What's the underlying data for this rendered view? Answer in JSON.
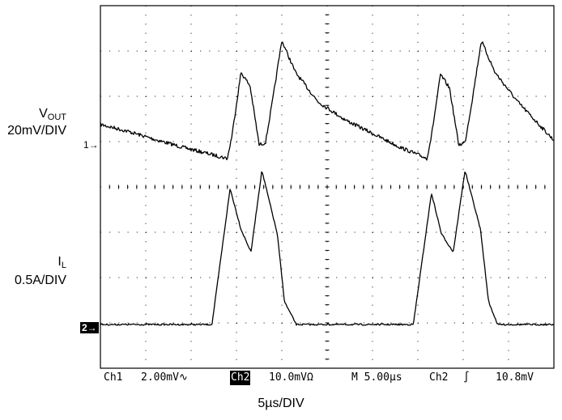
{
  "chart_data": {
    "type": "line",
    "title": "",
    "xlabel": "5µs/DIV",
    "x_unit": "µs",
    "x_per_div": 5,
    "xlim": [
      0,
      50
    ],
    "divisions": {
      "x": 10,
      "y": 8
    },
    "grid": true,
    "series": [
      {
        "name": "VOUT",
        "label_main": "V",
        "label_sub": "OUT",
        "scale": "20mV/DIV",
        "marker": "1→",
        "units": "divisions above channel 1 marker",
        "x": [
          0,
          3,
          6,
          9,
          12,
          14,
          14.5,
          15.5,
          16.5,
          17.5,
          18.2,
          19,
          20,
          21.5,
          24,
          27,
          30,
          33,
          36,
          36.5,
          37.5,
          38.5,
          39.5,
          40.2,
          41,
          42,
          43.5,
          46,
          50
        ],
        "y": [
          0.45,
          0.3,
          0.12,
          -0.05,
          -0.2,
          -0.3,
          0.2,
          1.6,
          1.3,
          0.0,
          0.05,
          1.0,
          2.3,
          1.6,
          0.95,
          0.55,
          0.25,
          -0.05,
          -0.3,
          0.2,
          1.55,
          1.25,
          0.0,
          0.05,
          1.0,
          2.3,
          1.6,
          0.95,
          0.1
        ]
      },
      {
        "name": "IL",
        "label_main": "I",
        "label_sub": "L",
        "scale": "0.5A/DIV",
        "marker": "2→",
        "units": "divisions above channel 2 marker",
        "x": [
          0,
          12.3,
          14.3,
          15.5,
          16.6,
          17.8,
          19.5,
          20.3,
          21.6,
          25,
          34.5,
          36.5,
          37.6,
          38.9,
          40.2,
          41.9,
          42.8,
          43.8,
          50
        ],
        "y": [
          0,
          0,
          3.0,
          2.1,
          1.6,
          3.4,
          2.0,
          0.5,
          0,
          0,
          0,
          2.9,
          2.0,
          1.6,
          3.4,
          2.1,
          0.5,
          0,
          0
        ]
      }
    ]
  },
  "status_bar": {
    "ch1": "Ch1",
    "ch1_scale": "2.00mV∿",
    "ch2": "Ch2",
    "ch2_scale": "10.0mVΩ",
    "timebase": "M 5.00µs",
    "trigger_source": "Ch2",
    "trigger_slope": "∫",
    "trigger_level": "10.8mV"
  }
}
